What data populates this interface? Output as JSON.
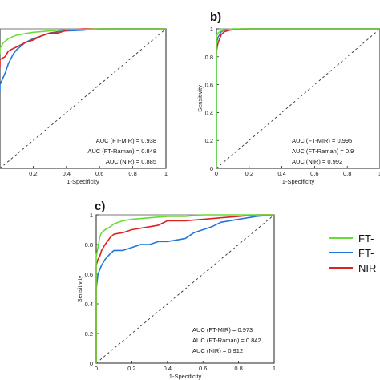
{
  "chart_data": [
    {
      "type": "line",
      "panel_label": "",
      "xlabel": "1-Specificity",
      "ylabel": "",
      "xlim": [
        0,
        1
      ],
      "ylim": [
        0,
        1
      ],
      "x_ticks": [
        "0.2",
        "0.4",
        "0.6",
        "0.8",
        "1"
      ],
      "y_ticks": [],
      "grid": false,
      "diagonal_reference": true,
      "annotations": [
        "AUC (FT-MIR) = 0.938",
        "AUC (FT-Raman) = 0.848",
        "AUC (NIR) = 0.885"
      ],
      "series": [
        {
          "color": "#66dd33",
          "x": [
            -0.05,
            0,
            0.02,
            0.05,
            0.1,
            0.15,
            0.2,
            0.25,
            0.3,
            0.35,
            0.4,
            0.5,
            0.6,
            0.7,
            0.8,
            1
          ],
          "y": [
            0.82,
            0.86,
            0.9,
            0.93,
            0.955,
            0.965,
            0.975,
            0.98,
            0.985,
            0.99,
            0.995,
            0.995,
            1,
            1,
            1,
            1
          ]
        },
        {
          "color": "#2277dd",
          "x": [
            -0.05,
            0,
            0.03,
            0.05,
            0.08,
            0.1,
            0.15,
            0.2,
            0.25,
            0.3,
            0.35,
            0.4,
            0.5,
            0.6,
            0.7,
            0.8,
            1
          ],
          "y": [
            0.55,
            0.6,
            0.68,
            0.75,
            0.82,
            0.85,
            0.9,
            0.93,
            0.95,
            0.97,
            0.98,
            0.985,
            0.99,
            1,
            1,
            1,
            1
          ]
        },
        {
          "color": "#dd2222",
          "x": [
            -0.05,
            0,
            0.03,
            0.05,
            0.08,
            0.1,
            0.15,
            0.2,
            0.25,
            0.3,
            0.35,
            0.4,
            0.5,
            0.6,
            0.7,
            0.8,
            1
          ],
          "y": [
            0.72,
            0.78,
            0.8,
            0.84,
            0.86,
            0.87,
            0.9,
            0.92,
            0.95,
            0.97,
            0.97,
            0.99,
            1,
            1,
            1,
            1,
            1
          ]
        }
      ]
    },
    {
      "type": "line",
      "panel_label": "b)",
      "xlabel": "1-Specificity",
      "ylabel": "Sensitivity",
      "xlim": [
        0,
        1
      ],
      "ylim": [
        0,
        1
      ],
      "x_ticks": [
        "0",
        "0.2",
        "0.4",
        "0.6",
        "0.8",
        "1"
      ],
      "y_ticks": [
        "0",
        "0.2",
        "0.4",
        "0.6",
        "0.8",
        "1"
      ],
      "grid": false,
      "diagonal_reference": true,
      "annotations": [
        "AUC (FT-MIR) = 0.995",
        "AUC (FT-Raman) = 0.9",
        "AUC (NIR) = 0.992"
      ],
      "series": [
        {
          "color": "#66dd33",
          "x": [
            0,
            0,
            0.01,
            0.02,
            0.04,
            0.1,
            0.2,
            0.4,
            1
          ],
          "y": [
            0,
            0.95,
            0.97,
            0.98,
            0.99,
            1,
            1,
            1,
            1
          ]
        },
        {
          "color": "#2277dd",
          "x": [
            0,
            0,
            0.01,
            0.02,
            0.03,
            0.05,
            0.1,
            0.2,
            0.5,
            1
          ],
          "y": [
            0,
            0.9,
            0.94,
            0.96,
            0.98,
            0.99,
            0.995,
            1,
            1,
            1
          ]
        },
        {
          "color": "#dd2222",
          "x": [
            0,
            0.01,
            0.02,
            0.03,
            0.05,
            0.08,
            0.15,
            0.3,
            1
          ],
          "y": [
            0.84,
            0.9,
            0.93,
            0.96,
            0.98,
            0.99,
            1,
            1,
            1
          ]
        }
      ]
    },
    {
      "type": "line",
      "panel_label": "c)",
      "xlabel": "1-Specificity",
      "ylabel": "Sensitivity",
      "xlim": [
        0,
        1
      ],
      "ylim": [
        0,
        1
      ],
      "x_ticks": [
        "0",
        "0.2",
        "0.4",
        "0.6",
        "0.8",
        "1"
      ],
      "y_ticks": [
        "0",
        "0.2",
        "0.4",
        "0.6",
        "0.8",
        "1"
      ],
      "grid": false,
      "diagonal_reference": true,
      "annotations": [
        "AUC (FT-MIR) = 0.973",
        "AUC (FT-Raman) = 0.842",
        "AUC (NIR) = 0.912"
      ],
      "series": [
        {
          "color": "#66dd33",
          "x": [
            0,
            0,
            0.01,
            0.02,
            0.03,
            0.05,
            0.08,
            0.1,
            0.15,
            0.2,
            0.3,
            0.4,
            0.5,
            0.6,
            0.7,
            0.8,
            0.9,
            1
          ],
          "y": [
            0,
            0.72,
            0.78,
            0.85,
            0.88,
            0.9,
            0.92,
            0.94,
            0.96,
            0.97,
            0.98,
            0.99,
            0.99,
            1,
            1,
            1,
            1,
            1
          ]
        },
        {
          "color": "#2277dd",
          "x": [
            0,
            0,
            0.01,
            0.02,
            0.03,
            0.05,
            0.08,
            0.1,
            0.15,
            0.2,
            0.25,
            0.3,
            0.35,
            0.4,
            0.5,
            0.55,
            0.6,
            0.65,
            0.7,
            0.8,
            0.9,
            1
          ],
          "y": [
            0,
            0.5,
            0.6,
            0.63,
            0.66,
            0.7,
            0.74,
            0.76,
            0.76,
            0.78,
            0.8,
            0.8,
            0.82,
            0.82,
            0.84,
            0.88,
            0.9,
            0.92,
            0.95,
            0.97,
            0.99,
            1
          ]
        },
        {
          "color": "#dd2222",
          "x": [
            0,
            0,
            0.01,
            0.02,
            0.03,
            0.05,
            0.08,
            0.1,
            0.15,
            0.2,
            0.3,
            0.35,
            0.4,
            0.5,
            0.6,
            0.7,
            0.8,
            0.9,
            1
          ],
          "y": [
            0,
            0.66,
            0.7,
            0.72,
            0.76,
            0.8,
            0.85,
            0.87,
            0.88,
            0.9,
            0.92,
            0.93,
            0.96,
            0.96,
            0.97,
            0.98,
            0.99,
            1,
            1
          ]
        }
      ]
    }
  ],
  "legend": {
    "entries": [
      {
        "label": "FT-",
        "color": "#66dd33"
      },
      {
        "label": "FT-",
        "color": "#2277dd"
      },
      {
        "label": "NIR",
        "color": "#dd2222"
      }
    ]
  }
}
